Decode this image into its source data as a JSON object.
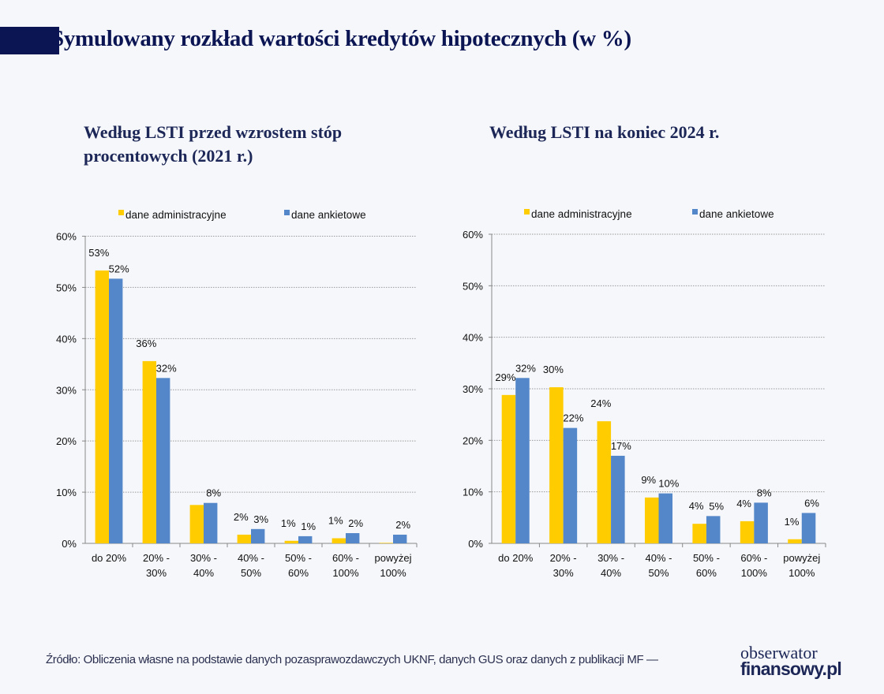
{
  "title": "Symulowany rozkład wartości kredytów hipotecznych (w %)",
  "source": "Źródło: Obliczenia własne na podstawie danych pozasprawozdawczych UKNF, danych GUS oraz danych z publikacji MF —",
  "logo": {
    "line1": "obserwator",
    "line2": "finansowy.pl"
  },
  "colors": {
    "dane administracyjne": "#ffcc00",
    "dane ankietowe": "#5387c9",
    "title": "#0b1553"
  },
  "chart_data": [
    {
      "type": "bar",
      "title": "Według LSTI przed wzrostem stóp procentowych (2021 r.)",
      "categories": [
        [
          "do 20%"
        ],
        [
          "20% -",
          "30%"
        ],
        [
          "30% -",
          "40%"
        ],
        [
          "40% -",
          "50%"
        ],
        [
          "50% -",
          "60%"
        ],
        [
          "60% -",
          "100%"
        ],
        [
          "powyżej",
          "100%"
        ]
      ],
      "ylim": [
        0,
        60
      ],
      "yticks": [
        "0%",
        "10%",
        "20%",
        "30%",
        "40%",
        "50%",
        "60%"
      ],
      "grid": true,
      "legend": "top",
      "series": [
        {
          "name": "dane administracyjne",
          "values": [
            53.3,
            35.6,
            7.5,
            1.7,
            0.5,
            1.0,
            0.1
          ],
          "labels": [
            "53%",
            "36%",
            "",
            "2%",
            "1%",
            "1%",
            ""
          ]
        },
        {
          "name": "dane ankietowe",
          "values": [
            51.7,
            32.3,
            7.9,
            2.8,
            1.4,
            2.0,
            1.7
          ],
          "labels": [
            "52%",
            "32%",
            "8%",
            "3%",
            "1%",
            "2%",
            "2%"
          ]
        }
      ]
    },
    {
      "type": "bar",
      "title": "Według LSTI na koniec 2024 r.",
      "categories": [
        [
          "do 20%"
        ],
        [
          "20% -",
          "30%"
        ],
        [
          "30% -",
          "40%"
        ],
        [
          "40% -",
          "50%"
        ],
        [
          "50% -",
          "60%"
        ],
        [
          "60% -",
          "100%"
        ],
        [
          "powyżej",
          "100%"
        ]
      ],
      "ylim": [
        0,
        60
      ],
      "yticks": [
        "0%",
        "10%",
        "20%",
        "30%",
        "40%",
        "50%",
        "60%"
      ],
      "grid": true,
      "legend": "top",
      "series": [
        {
          "name": "dane administracyjne",
          "values": [
            28.8,
            30.3,
            23.7,
            8.9,
            3.8,
            4.3,
            0.8
          ],
          "labels": [
            "29%",
            "30%",
            "24%",
            "9%",
            "4%",
            "4%",
            "1%"
          ]
        },
        {
          "name": "dane ankietowe",
          "values": [
            32.1,
            22.4,
            17.0,
            9.7,
            5.3,
            7.9,
            5.9
          ],
          "labels": [
            "32%",
            "22%",
            "17%",
            "10%",
            "5%",
            "8%",
            "6%"
          ]
        }
      ]
    }
  ]
}
